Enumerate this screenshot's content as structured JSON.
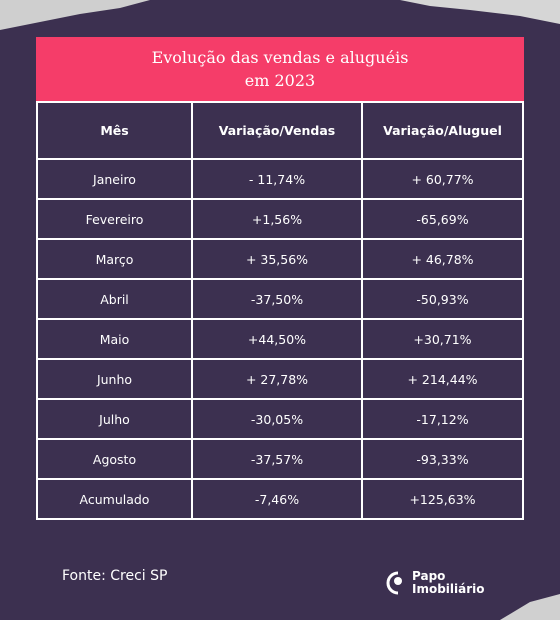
{
  "header": {
    "title_lines": [
      "Evolução das vendas e aluguéis",
      "em 2023"
    ]
  },
  "table": {
    "columns": [
      "Mês",
      "Variação/Vendas",
      "Variação/Aluguel"
    ],
    "rows": [
      [
        "Janeiro",
        "- 11,74%",
        "+ 60,77%"
      ],
      [
        "Fevereiro",
        "+1,56%",
        "-65,69%"
      ],
      [
        "Março",
        "+ 35,56%",
        "+ 46,78%"
      ],
      [
        "Abril",
        "-37,50%",
        "-50,93%"
      ],
      [
        "Maio",
        "+44,50%",
        "+30,71%"
      ],
      [
        "Junho",
        "+ 27,78%",
        "+ 214,44%"
      ],
      [
        "Julho",
        "-30,05%",
        "-17,12%"
      ],
      [
        "Agosto",
        "-37,57%",
        "-93,33%"
      ],
      [
        "Acumulado",
        "-7,46%",
        "+125,63%"
      ]
    ]
  },
  "footer": {
    "source": "Fonte:  Creci SP",
    "logo_lines": [
      "Papo",
      "Imobiliário"
    ]
  }
}
